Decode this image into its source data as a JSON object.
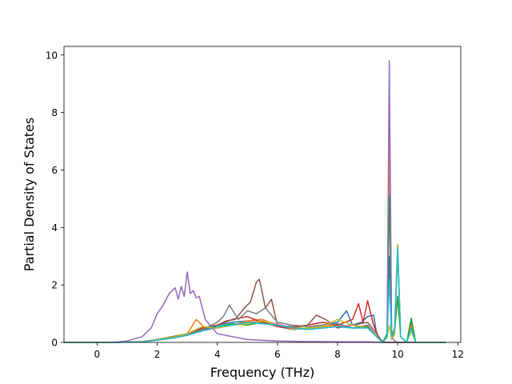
{
  "chart_data": {
    "type": "line",
    "title": "",
    "xlabel": "Frequency (THz)",
    "ylabel": "Partial Density of States",
    "xlim": [
      -1.1,
      12.1
    ],
    "ylim": [
      0,
      10.3
    ],
    "xticks": [
      0,
      2,
      4,
      6,
      8,
      10,
      12
    ],
    "yticks": [
      0,
      2,
      4,
      6,
      8,
      10
    ],
    "grid": false,
    "legend": "none",
    "series": [
      {
        "color": "#1f77b4",
        "x": [
          -1.1,
          0.5,
          1.5,
          2.0,
          2.5,
          3.0,
          3.5,
          4.0,
          4.5,
          5.0,
          5.5,
          6.0,
          6.5,
          7.0,
          7.5,
          8.0,
          8.3,
          8.5,
          8.8,
          9.0,
          9.2,
          9.3,
          9.5,
          9.65,
          9.72,
          9.8,
          9.9,
          10.0,
          10.1,
          10.3,
          10.45,
          10.6,
          11.0,
          11.6
        ],
        "y": [
          0,
          0,
          0.02,
          0.08,
          0.15,
          0.25,
          0.4,
          0.6,
          0.7,
          0.75,
          0.8,
          0.55,
          0.45,
          0.5,
          0.6,
          0.7,
          1.1,
          0.6,
          0.7,
          0.9,
          0.95,
          0.3,
          0,
          0.2,
          3.0,
          0.1,
          0.3,
          3.2,
          0.2,
          0,
          0.7,
          0,
          0,
          0
        ]
      },
      {
        "color": "#ff7f0e",
        "x": [
          -1.1,
          0.5,
          1.5,
          2.0,
          2.5,
          3.0,
          3.3,
          3.6,
          4.0,
          4.5,
          5.0,
          5.5,
          6.0,
          6.5,
          7.0,
          7.5,
          8.0,
          8.5,
          9.0,
          9.3,
          9.5,
          9.65,
          9.72,
          9.8,
          9.9,
          10.0,
          10.1,
          10.3,
          10.45,
          10.6,
          11.6
        ],
        "y": [
          0,
          0,
          0.03,
          0.1,
          0.2,
          0.3,
          0.8,
          0.5,
          0.55,
          0.6,
          0.75,
          0.8,
          0.6,
          0.45,
          0.5,
          0.55,
          0.6,
          0.5,
          0.55,
          0.2,
          0,
          0.3,
          7.3,
          0.2,
          0.5,
          3.4,
          0.2,
          0,
          0.6,
          0,
          0
        ]
      },
      {
        "color": "#2ca02c",
        "x": [
          -1.1,
          0.5,
          1.5,
          2.0,
          2.5,
          3.0,
          3.5,
          4.0,
          4.5,
          5.0,
          5.5,
          6.0,
          6.5,
          7.0,
          7.5,
          8.0,
          8.5,
          9.0,
          9.3,
          9.5,
          9.65,
          9.72,
          9.8,
          9.9,
          10.0,
          10.1,
          10.3,
          10.45,
          10.6,
          11.6
        ],
        "y": [
          0,
          0,
          0.02,
          0.1,
          0.2,
          0.3,
          0.45,
          0.55,
          0.65,
          0.6,
          0.7,
          0.6,
          0.5,
          0.45,
          0.5,
          0.55,
          0.5,
          0.55,
          0.2,
          0,
          0.3,
          5.1,
          0.2,
          0.4,
          1.6,
          0.2,
          0,
          0.85,
          0,
          0
        ]
      },
      {
        "color": "#d62728",
        "x": [
          -1.1,
          0.5,
          1.5,
          2.0,
          2.5,
          3.0,
          3.5,
          4.0,
          4.5,
          5.0,
          5.5,
          6.0,
          6.5,
          7.0,
          7.5,
          8.0,
          8.5,
          8.7,
          8.85,
          9.0,
          9.2,
          9.4,
          9.6,
          11.6
        ],
        "y": [
          0,
          0,
          0.02,
          0.1,
          0.18,
          0.28,
          0.5,
          0.6,
          0.8,
          0.9,
          0.7,
          0.55,
          0.5,
          0.6,
          0.7,
          0.6,
          0.8,
          1.35,
          0.7,
          1.45,
          0.6,
          0.1,
          0,
          0
        ]
      },
      {
        "color": "#9467bd",
        "x": [
          -1.1,
          0.5,
          1.0,
          1.5,
          1.8,
          2.0,
          2.2,
          2.4,
          2.6,
          2.7,
          2.8,
          2.9,
          3.0,
          3.1,
          3.2,
          3.3,
          3.4,
          3.6,
          4.0,
          5.0,
          6.0,
          7.0,
          8.0,
          9.0,
          9.5,
          9.65,
          9.72,
          9.8,
          9.9,
          10.0,
          11.6
        ],
        "y": [
          0,
          0,
          0.05,
          0.2,
          0.5,
          1.0,
          1.3,
          1.7,
          1.9,
          1.5,
          1.95,
          1.6,
          2.45,
          1.7,
          1.8,
          1.55,
          1.6,
          0.8,
          0.3,
          0.1,
          0.05,
          0.03,
          0.02,
          0.02,
          0,
          0.2,
          9.8,
          0.2,
          0.05,
          0,
          0
        ]
      },
      {
        "color": "#8c564b",
        "x": [
          -1.1,
          0.5,
          1.5,
          2.0,
          2.5,
          3.0,
          3.5,
          4.0,
          4.3,
          4.6,
          4.9,
          5.1,
          5.3,
          5.4,
          5.6,
          5.8,
          6.0,
          6.5,
          7.0,
          7.3,
          7.6,
          8.0,
          8.5,
          9.0,
          9.3,
          9.5,
          11.6
        ],
        "y": [
          0,
          0,
          0.02,
          0.1,
          0.2,
          0.3,
          0.45,
          0.6,
          0.75,
          0.8,
          1.2,
          1.4,
          2.1,
          2.2,
          1.2,
          1.5,
          0.6,
          0.55,
          0.6,
          0.95,
          0.8,
          0.5,
          0.6,
          0.7,
          0.3,
          0,
          0
        ]
      },
      {
        "color": "#e377c2",
        "x": [
          -1.1,
          0.5,
          1.5,
          2.0,
          2.5,
          3.0,
          3.5,
          4.0,
          4.5,
          5.0,
          5.5,
          6.0,
          6.5,
          7.0,
          7.5,
          8.0,
          8.5,
          9.0,
          9.3,
          9.5,
          11.6
        ],
        "y": [
          0,
          0,
          0.02,
          0.08,
          0.15,
          0.25,
          0.4,
          0.5,
          0.6,
          0.7,
          0.75,
          0.65,
          0.5,
          0.45,
          0.5,
          0.55,
          0.6,
          0.5,
          0.2,
          0,
          0
        ]
      },
      {
        "color": "#7f7f7f",
        "x": [
          -1.1,
          0.5,
          1.5,
          2.0,
          2.5,
          3.0,
          3.5,
          4.0,
          4.2,
          4.4,
          4.7,
          5.0,
          5.3,
          5.6,
          6.0,
          6.5,
          7.0,
          7.5,
          8.0,
          8.5,
          9.0,
          9.3,
          9.5,
          11.6
        ],
        "y": [
          0,
          0,
          0.02,
          0.08,
          0.15,
          0.25,
          0.45,
          0.7,
          0.9,
          1.3,
          0.8,
          1.1,
          1.0,
          1.2,
          0.7,
          0.6,
          0.55,
          0.6,
          0.65,
          0.5,
          0.6,
          0.2,
          0,
          0
        ]
      },
      {
        "color": "#bcbd22",
        "x": [
          -1.1,
          0.5,
          1.5,
          2.0,
          2.5,
          3.0,
          3.5,
          4.0,
          4.5,
          5.0,
          5.5,
          6.0,
          6.5,
          7.0,
          7.5,
          8.0,
          8.5,
          9.0,
          9.3,
          9.5,
          9.65,
          9.72,
          9.8,
          9.9,
          10.0,
          10.1,
          10.3,
          10.45,
          10.6,
          11.6
        ],
        "y": [
          0,
          0,
          0.02,
          0.1,
          0.18,
          0.3,
          0.55,
          0.5,
          0.6,
          0.65,
          0.75,
          0.6,
          0.5,
          0.5,
          0.55,
          0.8,
          0.6,
          0.5,
          0.2,
          0,
          0.2,
          0.6,
          0.1,
          0.3,
          3.4,
          0.2,
          0,
          0.4,
          0,
          0
        ]
      },
      {
        "color": "#17becf",
        "x": [
          -1.1,
          0.5,
          1.5,
          2.0,
          2.5,
          3.0,
          3.5,
          4.0,
          4.5,
          5.0,
          5.5,
          6.0,
          6.5,
          7.0,
          7.5,
          8.0,
          8.5,
          9.0,
          9.3,
          9.5,
          9.65,
          9.72,
          9.8,
          9.9,
          10.0,
          10.1,
          10.3,
          10.45,
          10.6,
          11.6
        ],
        "y": [
          0,
          0,
          0.02,
          0.08,
          0.15,
          0.25,
          0.4,
          0.55,
          0.6,
          0.7,
          0.65,
          0.6,
          0.5,
          0.45,
          0.5,
          0.55,
          0.5,
          0.5,
          0.2,
          0,
          0.2,
          2.2,
          0.2,
          0.5,
          3.3,
          0.2,
          0,
          0.5,
          0,
          0
        ]
      }
    ]
  }
}
